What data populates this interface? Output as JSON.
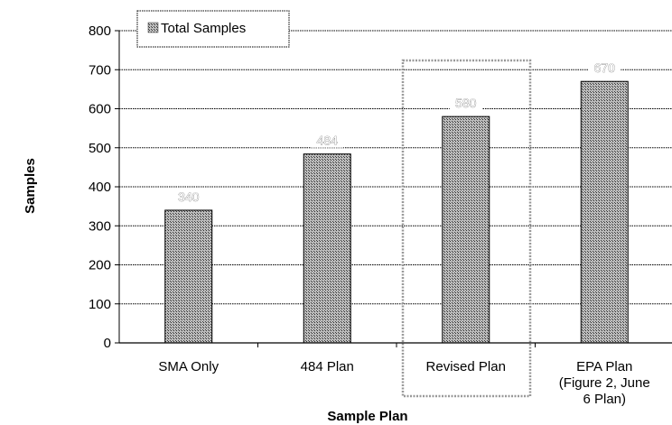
{
  "chart_data": {
    "type": "bar",
    "categories": [
      [
        "SMA Only"
      ],
      [
        "484 Plan"
      ],
      [
        "Revised Plan"
      ],
      [
        "EPA Plan",
        "(Figure 2, June",
        "6 Plan)"
      ]
    ],
    "series": [
      {
        "name": "Total Samples",
        "values": [
          340,
          484,
          580,
          670
        ]
      }
    ],
    "data_labels": [
      "340",
      "484",
      "580",
      "670"
    ],
    "xlabel": "Sample Plan",
    "ylabel": "Samples",
    "ylim": [
      0,
      800
    ],
    "yticks": [
      0,
      100,
      200,
      300,
      400,
      500,
      600,
      700,
      800
    ],
    "grid": true,
    "legend": {
      "position": "top-left",
      "entries": [
        "Total Samples"
      ]
    },
    "highlighted_category": "Revised Plan",
    "colors": {
      "bar_fill": "#808080",
      "bar_pattern": "crosshatch",
      "grid": "#000000"
    }
  }
}
